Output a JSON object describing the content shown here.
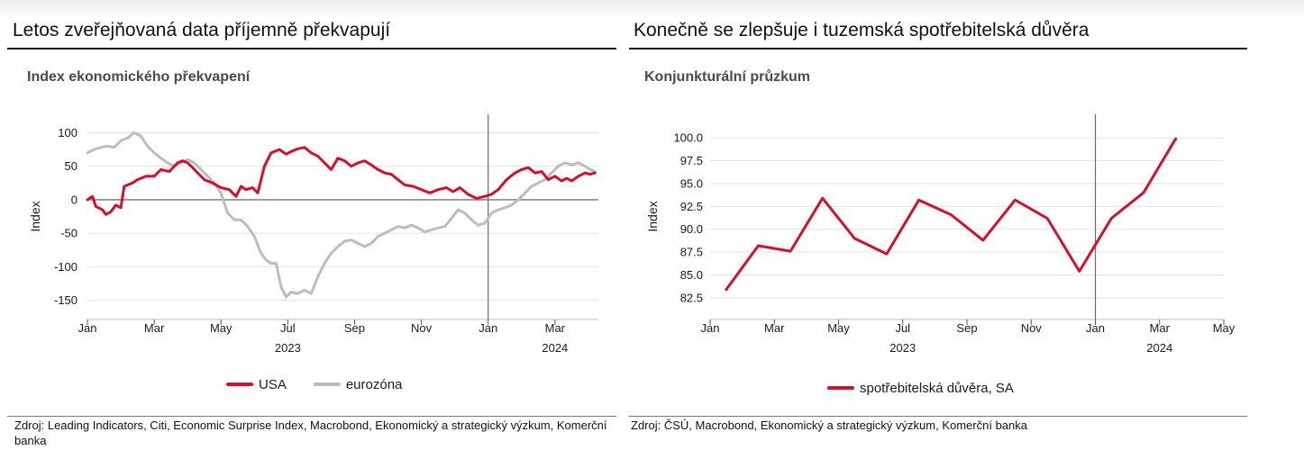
{
  "left": {
    "headline": "Letos zveřejňovaná data příjemně překvapují",
    "subtitle": "Index ekonomického překvapení",
    "source": "Zdroj: Leading Indicators, Citi, Economic Surprise Index, Macrobond, Ekonomický a strategický výzkum, Komerční banka"
  },
  "right": {
    "headline": "Konečně se zlepšuje i tuzemská spotřebitelská důvěra",
    "subtitle": "Konjunkturální průzkum",
    "source": "Zdroj: ČSÚ, Macrobond, Ekonomický a strategický výzkum, Komerční banka"
  },
  "chart_data": [
    {
      "type": "line",
      "ylabel": "Index",
      "ylim": [
        -160,
        110
      ],
      "yticks": [
        100,
        50,
        0,
        -50,
        -100,
        -150
      ],
      "ytick_labels": [
        "100",
        "50",
        "0",
        "-50",
        "-100",
        "-150"
      ],
      "x_unit": "month index from Jan 2023 (0 = Jan 2023)",
      "xlim": [
        0,
        15.3
      ],
      "xticks": [
        0,
        2,
        4,
        6,
        8,
        10,
        12,
        14
      ],
      "xtick_labels": [
        "Jan",
        "Mar",
        "May",
        "Jul",
        "Sep",
        "Nov",
        "Jan",
        "Mar"
      ],
      "year_labels": [
        {
          "x": 6,
          "label": "2023"
        },
        {
          "x": 14,
          "label": "2024"
        }
      ],
      "vline_x": 12,
      "zero_line": true,
      "grid": "horizontal",
      "legend_placement": "bottom",
      "series": [
        {
          "name": "USA",
          "color": "#d50f2e",
          "x": [
            0,
            0.15,
            0.25,
            0.45,
            0.55,
            0.7,
            0.85,
            1.0,
            1.1,
            1.2,
            1.35,
            1.5,
            1.75,
            2.0,
            2.2,
            2.45,
            2.7,
            2.85,
            3.0,
            3.15,
            3.3,
            3.5,
            3.75,
            4.0,
            4.25,
            4.45,
            4.6,
            4.75,
            4.95,
            5.1,
            5.3,
            5.5,
            5.75,
            5.95,
            6.1,
            6.3,
            6.5,
            6.7,
            6.9,
            7.1,
            7.3,
            7.5,
            7.7,
            7.9,
            8.1,
            8.3,
            8.5,
            8.7,
            8.9,
            9.1,
            9.3,
            9.5,
            9.75,
            10.0,
            10.25,
            10.5,
            10.75,
            10.95,
            11.15,
            11.4,
            11.65,
            11.9,
            12.1,
            12.3,
            12.55,
            12.8,
            13.0,
            13.2,
            13.4,
            13.6,
            13.8,
            14.0,
            14.2,
            14.35,
            14.5,
            14.7,
            14.9,
            15.05,
            15.2
          ],
          "values": [
            0,
            5,
            -10,
            -15,
            -22,
            -18,
            -8,
            -12,
            20,
            22,
            25,
            30,
            35,
            35,
            45,
            42,
            55,
            58,
            55,
            48,
            40,
            30,
            25,
            18,
            15,
            5,
            20,
            15,
            18,
            10,
            50,
            70,
            75,
            68,
            72,
            76,
            78,
            70,
            65,
            55,
            45,
            62,
            58,
            50,
            55,
            58,
            52,
            45,
            40,
            38,
            30,
            22,
            20,
            15,
            10,
            15,
            18,
            12,
            18,
            8,
            2,
            5,
            8,
            15,
            30,
            40,
            45,
            48,
            40,
            42,
            30,
            35,
            28,
            32,
            28,
            35,
            40,
            38,
            40
          ]
        },
        {
          "name": "eurozóna",
          "color": "#bdbdbd",
          "x": [
            0,
            0.2,
            0.4,
            0.6,
            0.8,
            1.0,
            1.2,
            1.4,
            1.6,
            1.8,
            2.0,
            2.2,
            2.4,
            2.6,
            2.8,
            3.0,
            3.2,
            3.4,
            3.6,
            3.8,
            4.0,
            4.2,
            4.4,
            4.6,
            4.8,
            5.0,
            5.2,
            5.35,
            5.5,
            5.65,
            5.8,
            5.95,
            6.1,
            6.3,
            6.5,
            6.7,
            6.9,
            7.1,
            7.3,
            7.5,
            7.7,
            7.9,
            8.1,
            8.3,
            8.5,
            8.7,
            8.9,
            9.1,
            9.3,
            9.5,
            9.7,
            9.9,
            10.1,
            10.3,
            10.5,
            10.7,
            10.9,
            11.1,
            11.3,
            11.5,
            11.7,
            11.9,
            12.1,
            12.3,
            12.5,
            12.7,
            12.9,
            13.1,
            13.3,
            13.5,
            13.7,
            13.9,
            14.1,
            14.3,
            14.5,
            14.7,
            14.9,
            15.05,
            15.2
          ],
          "values": [
            70,
            75,
            78,
            80,
            78,
            88,
            92,
            100,
            95,
            80,
            70,
            62,
            55,
            50,
            55,
            60,
            55,
            45,
            35,
            25,
            10,
            -20,
            -30,
            -30,
            -40,
            -55,
            -80,
            -90,
            -95,
            -95,
            -130,
            -145,
            -138,
            -140,
            -135,
            -140,
            -115,
            -95,
            -80,
            -70,
            -62,
            -60,
            -65,
            -70,
            -65,
            -55,
            -50,
            -45,
            -40,
            -42,
            -38,
            -42,
            -48,
            -45,
            -42,
            -40,
            -28,
            -15,
            -20,
            -30,
            -38,
            -35,
            -20,
            -15,
            -12,
            -8,
            0,
            10,
            20,
            25,
            30,
            40,
            50,
            55,
            52,
            55,
            50,
            45,
            42
          ]
        }
      ]
    },
    {
      "type": "line",
      "ylabel": "Index",
      "ylim": [
        81.5,
        101.3
      ],
      "yticks": [
        100,
        97.5,
        95,
        92.5,
        90,
        87.5,
        85,
        82.5
      ],
      "ytick_labels": [
        "100.0",
        "97.5",
        "95.0",
        "92.5",
        "90.0",
        "87.5",
        "85.0",
        "82.5"
      ],
      "x_unit": "month index from Jan 2023 (0 = Jan 2023)",
      "xlim": [
        0,
        16
      ],
      "xticks": [
        0,
        2,
        4,
        6,
        8,
        10,
        12,
        14,
        16
      ],
      "xtick_labels": [
        "Jan",
        "Mar",
        "May",
        "Jul",
        "Sep",
        "Nov",
        "Jan",
        "Mar",
        "May"
      ],
      "year_labels": [
        {
          "x": 6,
          "label": "2023"
        },
        {
          "x": 14,
          "label": "2024"
        }
      ],
      "vline_x": 12,
      "zero_line": false,
      "grid": "horizontal",
      "legend_placement": "bottom",
      "series": [
        {
          "name": "spotřebitelská důvěra, SA",
          "color": "#d50f2e",
          "x": [
            0.5,
            1.5,
            2.5,
            3.5,
            4.5,
            5.5,
            6.5,
            7.5,
            8.5,
            9.5,
            10.5,
            11.5,
            12.5,
            13.5,
            14.5
          ],
          "values": [
            83.4,
            88.2,
            87.6,
            93.4,
            89.0,
            87.3,
            93.2,
            91.6,
            88.8,
            93.2,
            91.2,
            85.4,
            91.2,
            94.0,
            99.9
          ]
        }
      ]
    }
  ]
}
